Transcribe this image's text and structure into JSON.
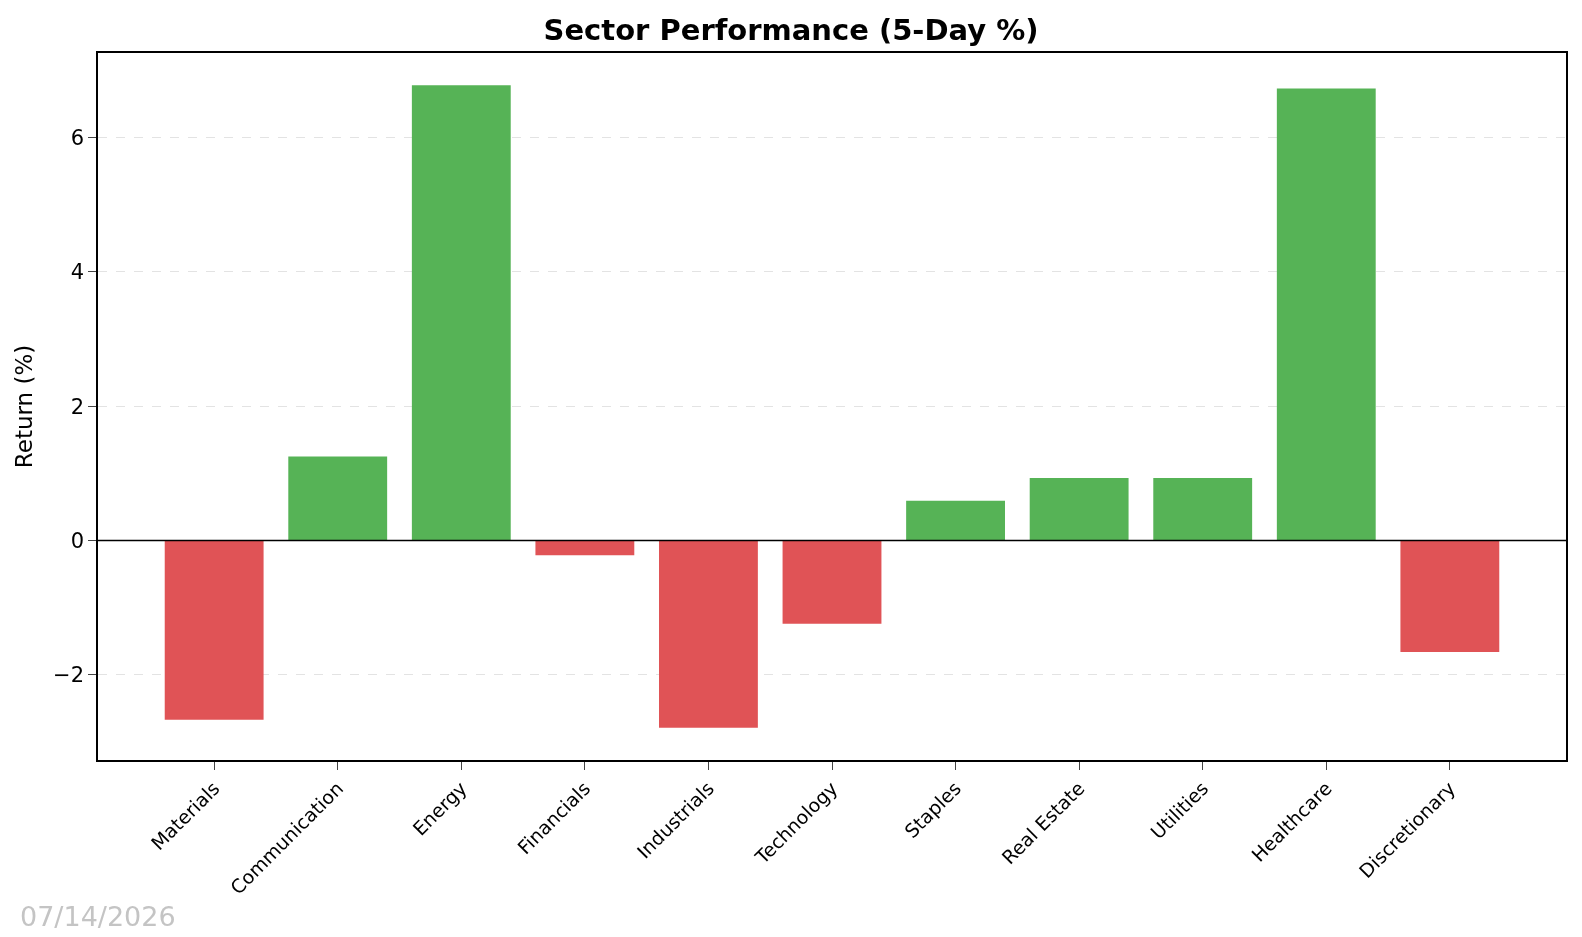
{
  "chart_data": {
    "type": "bar",
    "title": "Sector Performance (5-Day %)",
    "ylabel": "Return (%)",
    "categories": [
      "Materials",
      "Communication",
      "Energy",
      "Financials",
      "Industrials",
      "Technology",
      "Staples",
      "Real Estate",
      "Utilities",
      "Healthcare",
      "Discretionary"
    ],
    "values": [
      -2.67,
      1.25,
      6.78,
      -0.22,
      -2.79,
      -1.24,
      0.59,
      0.93,
      0.93,
      6.73,
      -1.66
    ],
    "colors": [
      "#e05356",
      "#56b356",
      "#56b356",
      "#e05356",
      "#e05356",
      "#e05356",
      "#56b356",
      "#56b356",
      "#56b356",
      "#56b356",
      "#e05356"
    ],
    "ylim": [
      -3.27,
      7.26
    ],
    "yticks": [
      {
        "value": -2,
        "label": "−2"
      },
      0,
      2,
      4,
      6
    ],
    "grid": "y",
    "ref_lines": [
      {
        "axis": "y",
        "value": 0,
        "color": "#000000"
      }
    ],
    "annotations": [
      "07/14/2026"
    ]
  }
}
